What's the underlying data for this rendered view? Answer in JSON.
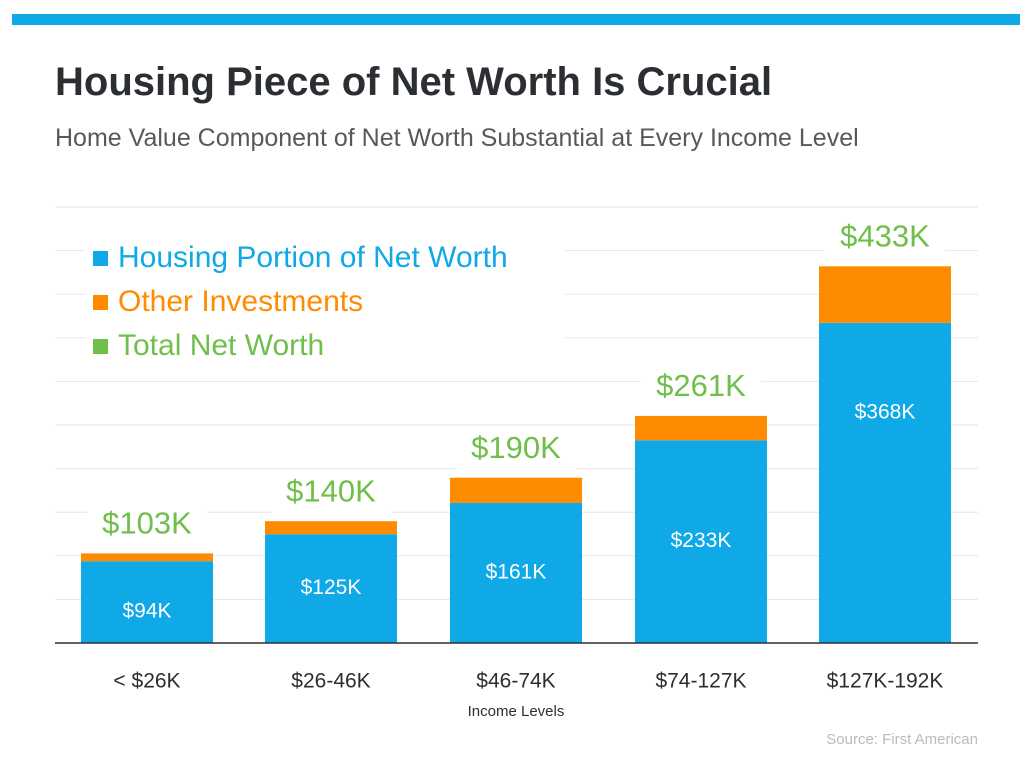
{
  "title": "Housing Piece of Net Worth Is Crucial",
  "subtitle": "Home Value Component of Net Worth Substantial at Every Income Level",
  "source": "Source: First American",
  "colors": {
    "accent_bar": "#0ea9e6",
    "housing": "#0ea9e6",
    "other": "#ff8c00",
    "total": "#6fbf4a"
  },
  "chart_data": {
    "type": "bar",
    "stacked": true,
    "categories": [
      "< $26K",
      "$26-46K",
      "$46-74K",
      "$74-127K",
      "$127K-192K"
    ],
    "series": [
      {
        "name": "Housing Portion of Net Worth",
        "values": [
          94,
          125,
          161,
          233,
          368
        ],
        "labels": [
          "$94K",
          "$125K",
          "$161K",
          "$233K",
          "$368K"
        ],
        "color": "#0ea9e6"
      },
      {
        "name": "Other Investments",
        "values": [
          9,
          15,
          29,
          28,
          65
        ],
        "color": "#ff8c00"
      }
    ],
    "totals": {
      "name": "Total Net Worth",
      "values": [
        103,
        140,
        190,
        261,
        433
      ],
      "labels": [
        "$103K",
        "$140K",
        "$190K",
        "$261K",
        "$433K"
      ],
      "color": "#6fbf4a"
    },
    "xlabel": "Income Levels",
    "ylabel": "",
    "ylim": [
      0,
      500
    ],
    "grid": true,
    "legend": "top-left"
  }
}
